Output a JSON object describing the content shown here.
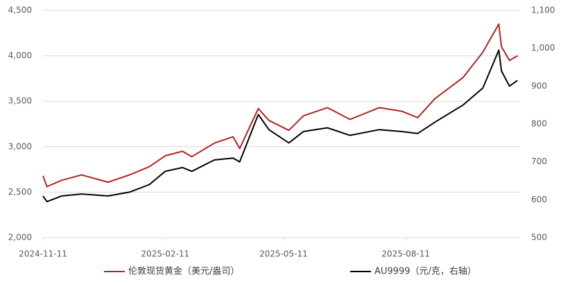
{
  "chart_data": {
    "type": "line",
    "x": [
      "2024-11-11",
      "2024-11-14",
      "2024-11-25",
      "2024-12-10",
      "2024-12-30",
      "2025-01-15",
      "2025-01-30",
      "2025-02-11",
      "2025-02-24",
      "2025-03-03",
      "2025-03-20",
      "2025-04-03",
      "2025-04-08",
      "2025-04-22",
      "2025-04-30",
      "2025-05-15",
      "2025-05-26",
      "2025-06-13",
      "2025-06-30",
      "2025-07-22",
      "2025-08-08",
      "2025-08-20",
      "2025-09-02",
      "2025-09-23",
      "2025-10-08",
      "2025-10-20",
      "2025-10-22",
      "2025-10-28",
      "2025-11-03"
    ],
    "xlim": [
      "2024-11-11",
      "2025-11-05"
    ],
    "xticks": [
      "2024-11-11",
      "2025-02-11",
      "2025-05-11",
      "2025-08-11"
    ],
    "series": [
      {
        "name": "伦敦现货黄金（美元/盎司）",
        "color": "#b22222",
        "values": [
          2680,
          2560,
          2630,
          2690,
          2610,
          2690,
          2780,
          2900,
          2950,
          2890,
          3040,
          3110,
          2980,
          3420,
          3290,
          3180,
          3340,
          3430,
          3300,
          3430,
          3390,
          3320,
          3530,
          3760,
          4040,
          4350,
          4100,
          3950,
          4000
        ]
      },
      {
        "name": "AU9999（元/克，右轴）",
        "color": "#000000",
        "axis": "y2",
        "values": [
          610,
          595,
          610,
          615,
          610,
          620,
          640,
          675,
          685,
          675,
          705,
          710,
          700,
          825,
          785,
          750,
          780,
          790,
          770,
          785,
          780,
          775,
          805,
          850,
          895,
          995,
          940,
          900,
          915
        ]
      }
    ],
    "ylim": [
      2000,
      4500
    ],
    "yticks": [
      {
        "value": 2000,
        "label": "2,000"
      },
      {
        "value": 2500,
        "label": "2,500"
      },
      {
        "value": 3000,
        "label": "3,000"
      },
      {
        "value": 3500,
        "label": "3,500"
      },
      {
        "value": 4000,
        "label": "4,000"
      },
      {
        "value": 4500,
        "label": "4,500"
      }
    ],
    "y2lim": [
      500,
      1100
    ],
    "y2ticks": [
      500,
      600,
      700,
      800,
      900,
      {
        "value": 1000,
        "label": "1,000"
      },
      {
        "value": 1100,
        "label": "1,100"
      }
    ],
    "grid": true
  }
}
